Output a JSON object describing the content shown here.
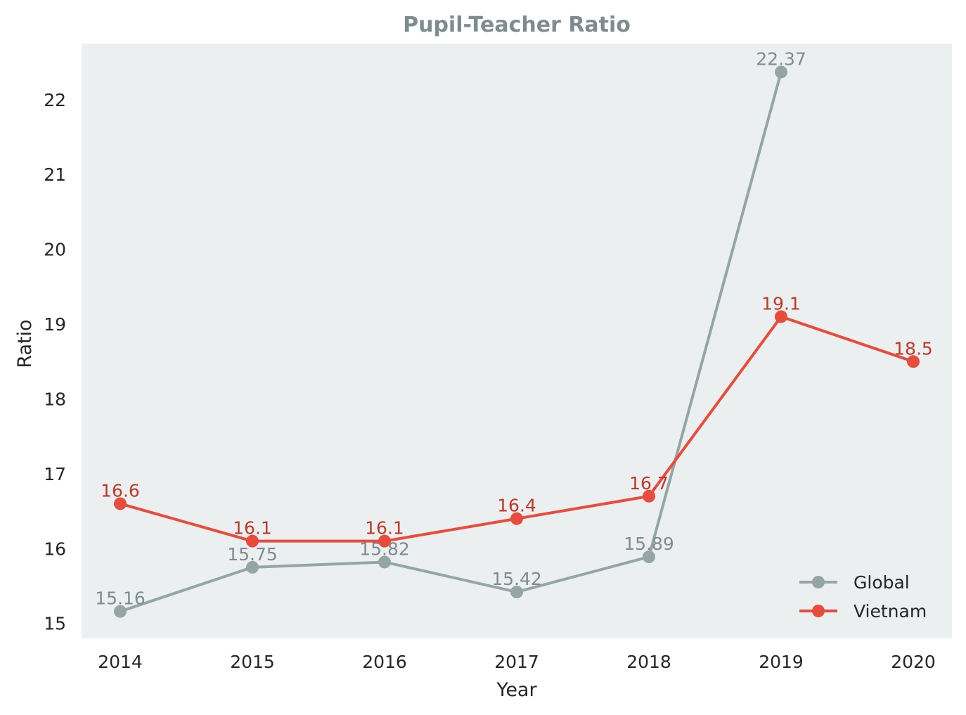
{
  "chart_data": {
    "type": "line",
    "title": "Pupil-Teacher Ratio",
    "xlabel": "Year",
    "ylabel": "Ratio",
    "x": [
      2014,
      2015,
      2016,
      2017,
      2018,
      2019,
      2020
    ],
    "x_tick_labels": [
      "2014",
      "2015",
      "2016",
      "2017",
      "2018",
      "2019",
      "2020"
    ],
    "y_ticks": [
      15,
      16,
      17,
      18,
      19,
      20,
      21,
      22
    ],
    "ylim": [
      14.8,
      22.75
    ],
    "grid": false,
    "legend_position": "bottom-right",
    "series": [
      {
        "name": "Global",
        "color": "#95a5a6",
        "label_color": "#7f8c8d",
        "values": [
          15.16,
          15.75,
          15.82,
          15.42,
          15.89,
          22.37,
          null
        ],
        "data_labels": [
          "15.16",
          "15.75",
          "15.82",
          "15.42",
          "15.89",
          "22.37",
          null
        ]
      },
      {
        "name": "Vietnam",
        "color": "#e74c3c",
        "label_color": "#c0392b",
        "values": [
          16.6,
          16.1,
          16.1,
          16.4,
          16.7,
          19.1,
          18.5
        ],
        "data_labels": [
          "16.6",
          "16.1",
          "16.1",
          "16.4",
          "16.7",
          "19.1",
          "18.5"
        ]
      }
    ],
    "colors": {
      "plot_background": "#ebeff0",
      "title": "#7f8c8d"
    }
  }
}
